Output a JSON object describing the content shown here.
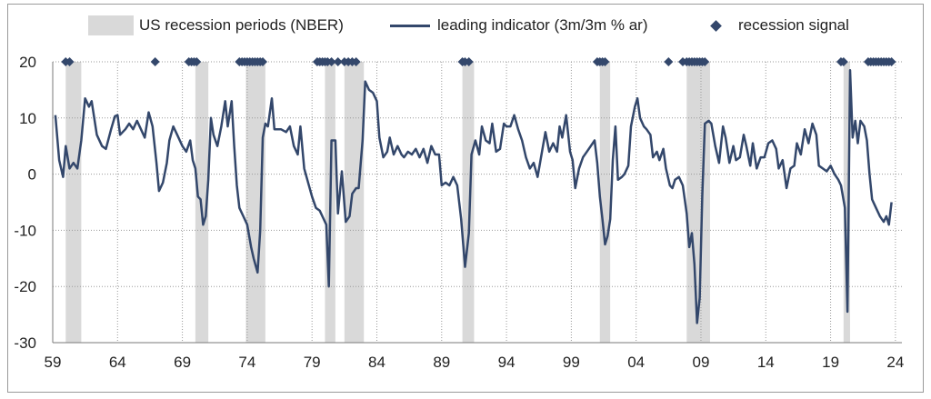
{
  "chart_data": {
    "type": "line",
    "title": "",
    "xlabel": "",
    "ylabel": "",
    "xlim": [
      1959.0,
      2024.5
    ],
    "ylim": [
      -30,
      20
    ],
    "grid": true,
    "legend": [
      {
        "name": "US recession periods (NBER)",
        "kind": "shaded-band",
        "color": "#d9d9d9"
      },
      {
        "name": "leading indicator (3m/3m % ar)",
        "kind": "line",
        "color": "#33476b"
      },
      {
        "name": "recession signal",
        "kind": "marker",
        "color": "#33476b"
      }
    ],
    "x_tick_labels": [
      "59",
      "64",
      "69",
      "74",
      "79",
      "84",
      "89",
      "94",
      "99",
      "04",
      "09",
      "14",
      "19",
      "24"
    ],
    "x_tick_years": [
      1959,
      1964,
      1969,
      1974,
      1979,
      1984,
      1989,
      1994,
      1999,
      2004,
      2009,
      2014,
      2019,
      2024
    ],
    "y_tick_labels": [
      "20",
      "10",
      "0",
      "-10",
      "-20",
      "-30"
    ],
    "y_ticks": [
      20,
      10,
      0,
      -10,
      -20,
      -30
    ],
    "recession_periods": [
      [
        1960.0,
        1961.2
      ],
      [
        1970.0,
        1971.0
      ],
      [
        1973.9,
        1975.4
      ],
      [
        1980.0,
        1980.8
      ],
      [
        1981.5,
        1983.0
      ],
      [
        1990.6,
        1991.5
      ],
      [
        2001.2,
        2002.0
      ],
      [
        2007.9,
        2009.7
      ],
      [
        2020.0,
        2020.5
      ]
    ],
    "recession_signal_dates": [
      1960.0,
      1960.3,
      1966.9,
      1969.5,
      1969.7,
      1969.9,
      1970.1,
      1973.4,
      1973.6,
      1973.8,
      1974.0,
      1974.2,
      1974.4,
      1974.6,
      1974.8,
      1975.0,
      1975.2,
      1979.4,
      1979.6,
      1979.8,
      1980.0,
      1980.2,
      1980.5,
      1981.0,
      1981.5,
      1981.8,
      1982.1,
      1982.4,
      1990.6,
      1990.8,
      1991.1,
      2001.0,
      2001.2,
      2001.4,
      2001.6,
      2006.5,
      2007.6,
      2007.9,
      2008.1,
      2008.3,
      2008.5,
      2008.7,
      2008.9,
      2009.1,
      2009.3,
      2019.8,
      2020.0,
      2021.9,
      2022.1,
      2022.3,
      2022.5,
      2022.7,
      2022.9,
      2023.1,
      2023.3,
      2023.5,
      2023.7
    ],
    "signal_value": 20,
    "series": [
      {
        "name": "leading indicator (3m/3m % ar)",
        "points": [
          [
            1959.2,
            10.5
          ],
          [
            1959.5,
            2.5
          ],
          [
            1959.8,
            -0.5
          ],
          [
            1960.0,
            5.0
          ],
          [
            1960.3,
            1.0
          ],
          [
            1960.6,
            2.0
          ],
          [
            1960.9,
            1.0
          ],
          [
            1961.2,
            6.0
          ],
          [
            1961.5,
            13.5
          ],
          [
            1961.8,
            12.0
          ],
          [
            1962.0,
            13.0
          ],
          [
            1962.4,
            7.0
          ],
          [
            1962.8,
            5.0
          ],
          [
            1963.1,
            4.5
          ],
          [
            1963.5,
            8.0
          ],
          [
            1963.8,
            10.3
          ],
          [
            1964.0,
            10.5
          ],
          [
            1964.2,
            7.0
          ],
          [
            1964.6,
            8.0
          ],
          [
            1964.9,
            9.0
          ],
          [
            1965.2,
            8.0
          ],
          [
            1965.5,
            9.5
          ],
          [
            1965.8,
            8.0
          ],
          [
            1966.1,
            6.5
          ],
          [
            1966.4,
            11.0
          ],
          [
            1966.7,
            8.5
          ],
          [
            1967.0,
            2.0
          ],
          [
            1967.2,
            -3.0
          ],
          [
            1967.5,
            -1.5
          ],
          [
            1967.8,
            2.0
          ],
          [
            1968.0,
            6.0
          ],
          [
            1968.3,
            8.5
          ],
          [
            1968.6,
            7.0
          ],
          [
            1969.0,
            5.0
          ],
          [
            1969.3,
            4.0
          ],
          [
            1969.6,
            6.0
          ],
          [
            1969.8,
            2.5
          ],
          [
            1970.0,
            1.0
          ],
          [
            1970.2,
            -4.0
          ],
          [
            1970.4,
            -4.5
          ],
          [
            1970.6,
            -9.0
          ],
          [
            1970.8,
            -7.5
          ],
          [
            1971.0,
            -1.0
          ],
          [
            1971.2,
            10.0
          ],
          [
            1971.4,
            7.0
          ],
          [
            1971.7,
            5.0
          ],
          [
            1972.0,
            8.5
          ],
          [
            1972.3,
            13.0
          ],
          [
            1972.5,
            8.5
          ],
          [
            1972.8,
            13.0
          ],
          [
            1973.0,
            5.0
          ],
          [
            1973.2,
            -2.0
          ],
          [
            1973.4,
            -6.0
          ],
          [
            1973.7,
            -7.5
          ],
          [
            1974.0,
            -9.0
          ],
          [
            1974.3,
            -13.0
          ],
          [
            1974.5,
            -15.0
          ],
          [
            1974.8,
            -17.5
          ],
          [
            1975.0,
            -10.0
          ],
          [
            1975.2,
            6.5
          ],
          [
            1975.4,
            9.0
          ],
          [
            1975.6,
            8.5
          ],
          [
            1975.9,
            13.5
          ],
          [
            1976.1,
            8.0
          ],
          [
            1976.6,
            8.0
          ],
          [
            1977.0,
            7.5
          ],
          [
            1977.3,
            8.5
          ],
          [
            1977.6,
            5.0
          ],
          [
            1977.9,
            3.5
          ],
          [
            1978.1,
            8.5
          ],
          [
            1978.4,
            1.0
          ],
          [
            1978.7,
            -1.5
          ],
          [
            1979.0,
            -4.0
          ],
          [
            1979.3,
            -6.0
          ],
          [
            1979.6,
            -6.5
          ],
          [
            1979.9,
            -8.0
          ],
          [
            1980.1,
            -9.0
          ],
          [
            1980.3,
            -20.0
          ],
          [
            1980.5,
            6.0
          ],
          [
            1980.8,
            6.0
          ],
          [
            1981.0,
            -7.0
          ],
          [
            1981.3,
            0.5
          ],
          [
            1981.6,
            -8.5
          ],
          [
            1981.9,
            -7.5
          ],
          [
            1982.1,
            -3.5
          ],
          [
            1982.4,
            -2.5
          ],
          [
            1982.6,
            -2.5
          ],
          [
            1982.9,
            6.0
          ],
          [
            1983.1,
            16.5
          ],
          [
            1983.4,
            15.0
          ],
          [
            1983.7,
            14.5
          ],
          [
            1984.0,
            13.0
          ],
          [
            1984.2,
            6.5
          ],
          [
            1984.5,
            3.0
          ],
          [
            1984.8,
            4.0
          ],
          [
            1985.0,
            6.5
          ],
          [
            1985.3,
            3.5
          ],
          [
            1985.6,
            5.0
          ],
          [
            1985.9,
            3.5
          ],
          [
            1986.1,
            3.0
          ],
          [
            1986.4,
            4.0
          ],
          [
            1986.7,
            3.5
          ],
          [
            1987.0,
            4.5
          ],
          [
            1987.3,
            3.0
          ],
          [
            1987.6,
            4.5
          ],
          [
            1987.9,
            2.0
          ],
          [
            1988.2,
            5.0
          ],
          [
            1988.5,
            3.5
          ],
          [
            1988.8,
            3.5
          ],
          [
            1989.0,
            -2.0
          ],
          [
            1989.3,
            -1.5
          ],
          [
            1989.6,
            -2.0
          ],
          [
            1989.9,
            -0.5
          ],
          [
            1990.2,
            -2.0
          ],
          [
            1990.5,
            -8.0
          ],
          [
            1990.8,
            -16.5
          ],
          [
            1991.1,
            -10.5
          ],
          [
            1991.3,
            3.5
          ],
          [
            1991.6,
            6.0
          ],
          [
            1991.9,
            3.5
          ],
          [
            1992.1,
            8.5
          ],
          [
            1992.4,
            6.0
          ],
          [
            1992.7,
            5.5
          ],
          [
            1992.9,
            9.0
          ],
          [
            1993.2,
            4.0
          ],
          [
            1993.5,
            4.5
          ],
          [
            1993.8,
            9.0
          ],
          [
            1994.0,
            8.5
          ],
          [
            1994.3,
            8.5
          ],
          [
            1994.6,
            10.5
          ],
          [
            1994.9,
            8.0
          ],
          [
            1995.2,
            6.0
          ],
          [
            1995.5,
            3.0
          ],
          [
            1995.8,
            1.0
          ],
          [
            1996.1,
            2.0
          ],
          [
            1996.4,
            -0.5
          ],
          [
            1996.7,
            3.5
          ],
          [
            1997.0,
            7.5
          ],
          [
            1997.3,
            4.0
          ],
          [
            1997.6,
            5.5
          ],
          [
            1997.9,
            4.0
          ],
          [
            1998.1,
            8.5
          ],
          [
            1998.3,
            6.5
          ],
          [
            1998.6,
            10.5
          ],
          [
            1998.9,
            4.0
          ],
          [
            1999.1,
            2.5
          ],
          [
            1999.3,
            -2.5
          ],
          [
            1999.6,
            1.0
          ],
          [
            1999.9,
            3.0
          ],
          [
            2000.2,
            4.0
          ],
          [
            2000.5,
            5.0
          ],
          [
            2000.8,
            6.0
          ],
          [
            2001.0,
            2.0
          ],
          [
            2001.2,
            -4.0
          ],
          [
            2001.4,
            -8.0
          ],
          [
            2001.6,
            -12.5
          ],
          [
            2001.8,
            -11.0
          ],
          [
            2002.0,
            -8.0
          ],
          [
            2002.2,
            2.5
          ],
          [
            2002.4,
            8.5
          ],
          [
            2002.6,
            -1.0
          ],
          [
            2002.9,
            -0.5
          ],
          [
            2003.1,
            0.0
          ],
          [
            2003.4,
            1.5
          ],
          [
            2003.6,
            8.5
          ],
          [
            2003.9,
            12.0
          ],
          [
            2004.1,
            13.5
          ],
          [
            2004.3,
            10.0
          ],
          [
            2004.6,
            8.5
          ],
          [
            2004.8,
            8.0
          ],
          [
            2005.1,
            7.0
          ],
          [
            2005.3,
            3.0
          ],
          [
            2005.6,
            4.0
          ],
          [
            2005.8,
            2.5
          ],
          [
            2006.1,
            4.5
          ],
          [
            2006.3,
            1.0
          ],
          [
            2006.6,
            -2.0
          ],
          [
            2006.8,
            -2.5
          ],
          [
            2007.0,
            -1.0
          ],
          [
            2007.3,
            -0.5
          ],
          [
            2007.6,
            -2.0
          ],
          [
            2007.9,
            -7.0
          ],
          [
            2008.1,
            -13.0
          ],
          [
            2008.3,
            -10.5
          ],
          [
            2008.5,
            -16.0
          ],
          [
            2008.7,
            -26.5
          ],
          [
            2008.9,
            -22.0
          ],
          [
            2009.1,
            -4.0
          ],
          [
            2009.3,
            9.0
          ],
          [
            2009.6,
            9.5
          ],
          [
            2009.8,
            9.0
          ],
          [
            2010.1,
            5.0
          ],
          [
            2010.4,
            2.0
          ],
          [
            2010.7,
            8.5
          ],
          [
            2010.9,
            6.5
          ],
          [
            2011.2,
            2.0
          ],
          [
            2011.5,
            5.0
          ],
          [
            2011.7,
            2.5
          ],
          [
            2012.0,
            3.0
          ],
          [
            2012.3,
            7.0
          ],
          [
            2012.5,
            5.0
          ],
          [
            2012.8,
            1.5
          ],
          [
            2013.0,
            5.5
          ],
          [
            2013.3,
            1.0
          ],
          [
            2013.6,
            3.0
          ],
          [
            2013.9,
            3.0
          ],
          [
            2014.2,
            5.5
          ],
          [
            2014.5,
            6.0
          ],
          [
            2014.8,
            4.5
          ],
          [
            2015.0,
            1.0
          ],
          [
            2015.3,
            2.5
          ],
          [
            2015.6,
            -2.5
          ],
          [
            2015.9,
            1.0
          ],
          [
            2016.2,
            1.5
          ],
          [
            2016.4,
            5.5
          ],
          [
            2016.7,
            3.5
          ],
          [
            2017.0,
            8.0
          ],
          [
            2017.3,
            5.5
          ],
          [
            2017.6,
            9.0
          ],
          [
            2017.9,
            7.0
          ],
          [
            2018.1,
            1.5
          ],
          [
            2018.4,
            1.0
          ],
          [
            2018.7,
            0.5
          ],
          [
            2019.0,
            1.5
          ],
          [
            2019.3,
            0.0
          ],
          [
            2019.6,
            -1.0
          ],
          [
            2019.8,
            -2.0
          ],
          [
            2020.1,
            -6.0
          ],
          [
            2020.3,
            -24.5
          ],
          [
            2020.5,
            18.5
          ],
          [
            2020.7,
            6.5
          ],
          [
            2020.9,
            9.5
          ],
          [
            2021.1,
            5.5
          ],
          [
            2021.3,
            9.5
          ],
          [
            2021.6,
            8.5
          ],
          [
            2021.8,
            6.0
          ],
          [
            2022.0,
            0.0
          ],
          [
            2022.2,
            -4.5
          ],
          [
            2022.5,
            -6.0
          ],
          [
            2022.8,
            -7.5
          ],
          [
            2023.1,
            -8.5
          ],
          [
            2023.3,
            -7.5
          ],
          [
            2023.5,
            -9.0
          ],
          [
            2023.7,
            -5.0
          ]
        ]
      }
    ]
  }
}
